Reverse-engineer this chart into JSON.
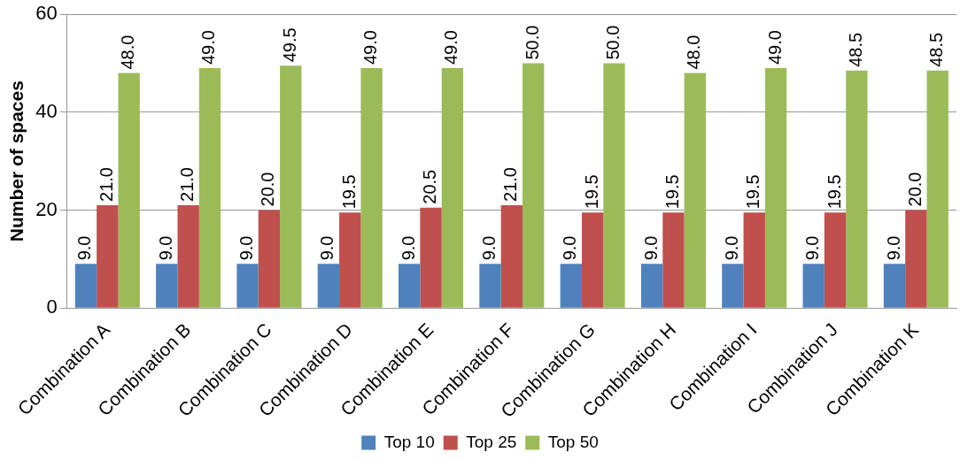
{
  "chart_data": {
    "type": "bar",
    "ylabel": "Number of spaces",
    "categories": [
      "Combination A",
      "Combination B",
      "Combination C",
      "Combination D",
      "Combination E",
      "Combination F",
      "Combination G",
      "Combination H",
      "Combination I",
      "Combination J",
      "Combination K"
    ],
    "series": [
      {
        "name": "Top 10",
        "color": "#4f81bd",
        "values": [
          9,
          9,
          9,
          9,
          9,
          9,
          9,
          9,
          9,
          9,
          9
        ],
        "value_labels": [
          "9.0",
          "9.0",
          "9.0",
          "9.0",
          "9.0",
          "9.0",
          "9.0",
          "9.0",
          "9.0",
          "9.0",
          "9.0"
        ]
      },
      {
        "name": "Top 25",
        "color": "#c0504d",
        "values": [
          21,
          21,
          20,
          19.5,
          20.5,
          21,
          19.5,
          19.5,
          19.5,
          19.5,
          20
        ],
        "value_labels": [
          "21.0",
          "21.0",
          "20.0",
          "19.5",
          "20.5",
          "21.0",
          "19.5",
          "19.5",
          "19.5",
          "19.5",
          "20.0"
        ]
      },
      {
        "name": "Top 50",
        "color": "#9bbb59",
        "values": [
          48,
          49,
          49.5,
          49,
          49,
          50,
          50,
          48,
          49,
          48.5,
          48.5
        ],
        "value_labels": [
          "48.0",
          "49.0",
          "49.5",
          "49.0",
          "49.0",
          "50.0",
          "50.0",
          "48.0",
          "49.0",
          "48.5",
          "48.5"
        ]
      }
    ],
    "ylim": [
      0,
      60
    ],
    "yticks": [
      0,
      20,
      40,
      60
    ],
    "grid": "y",
    "legend": "bottom"
  }
}
